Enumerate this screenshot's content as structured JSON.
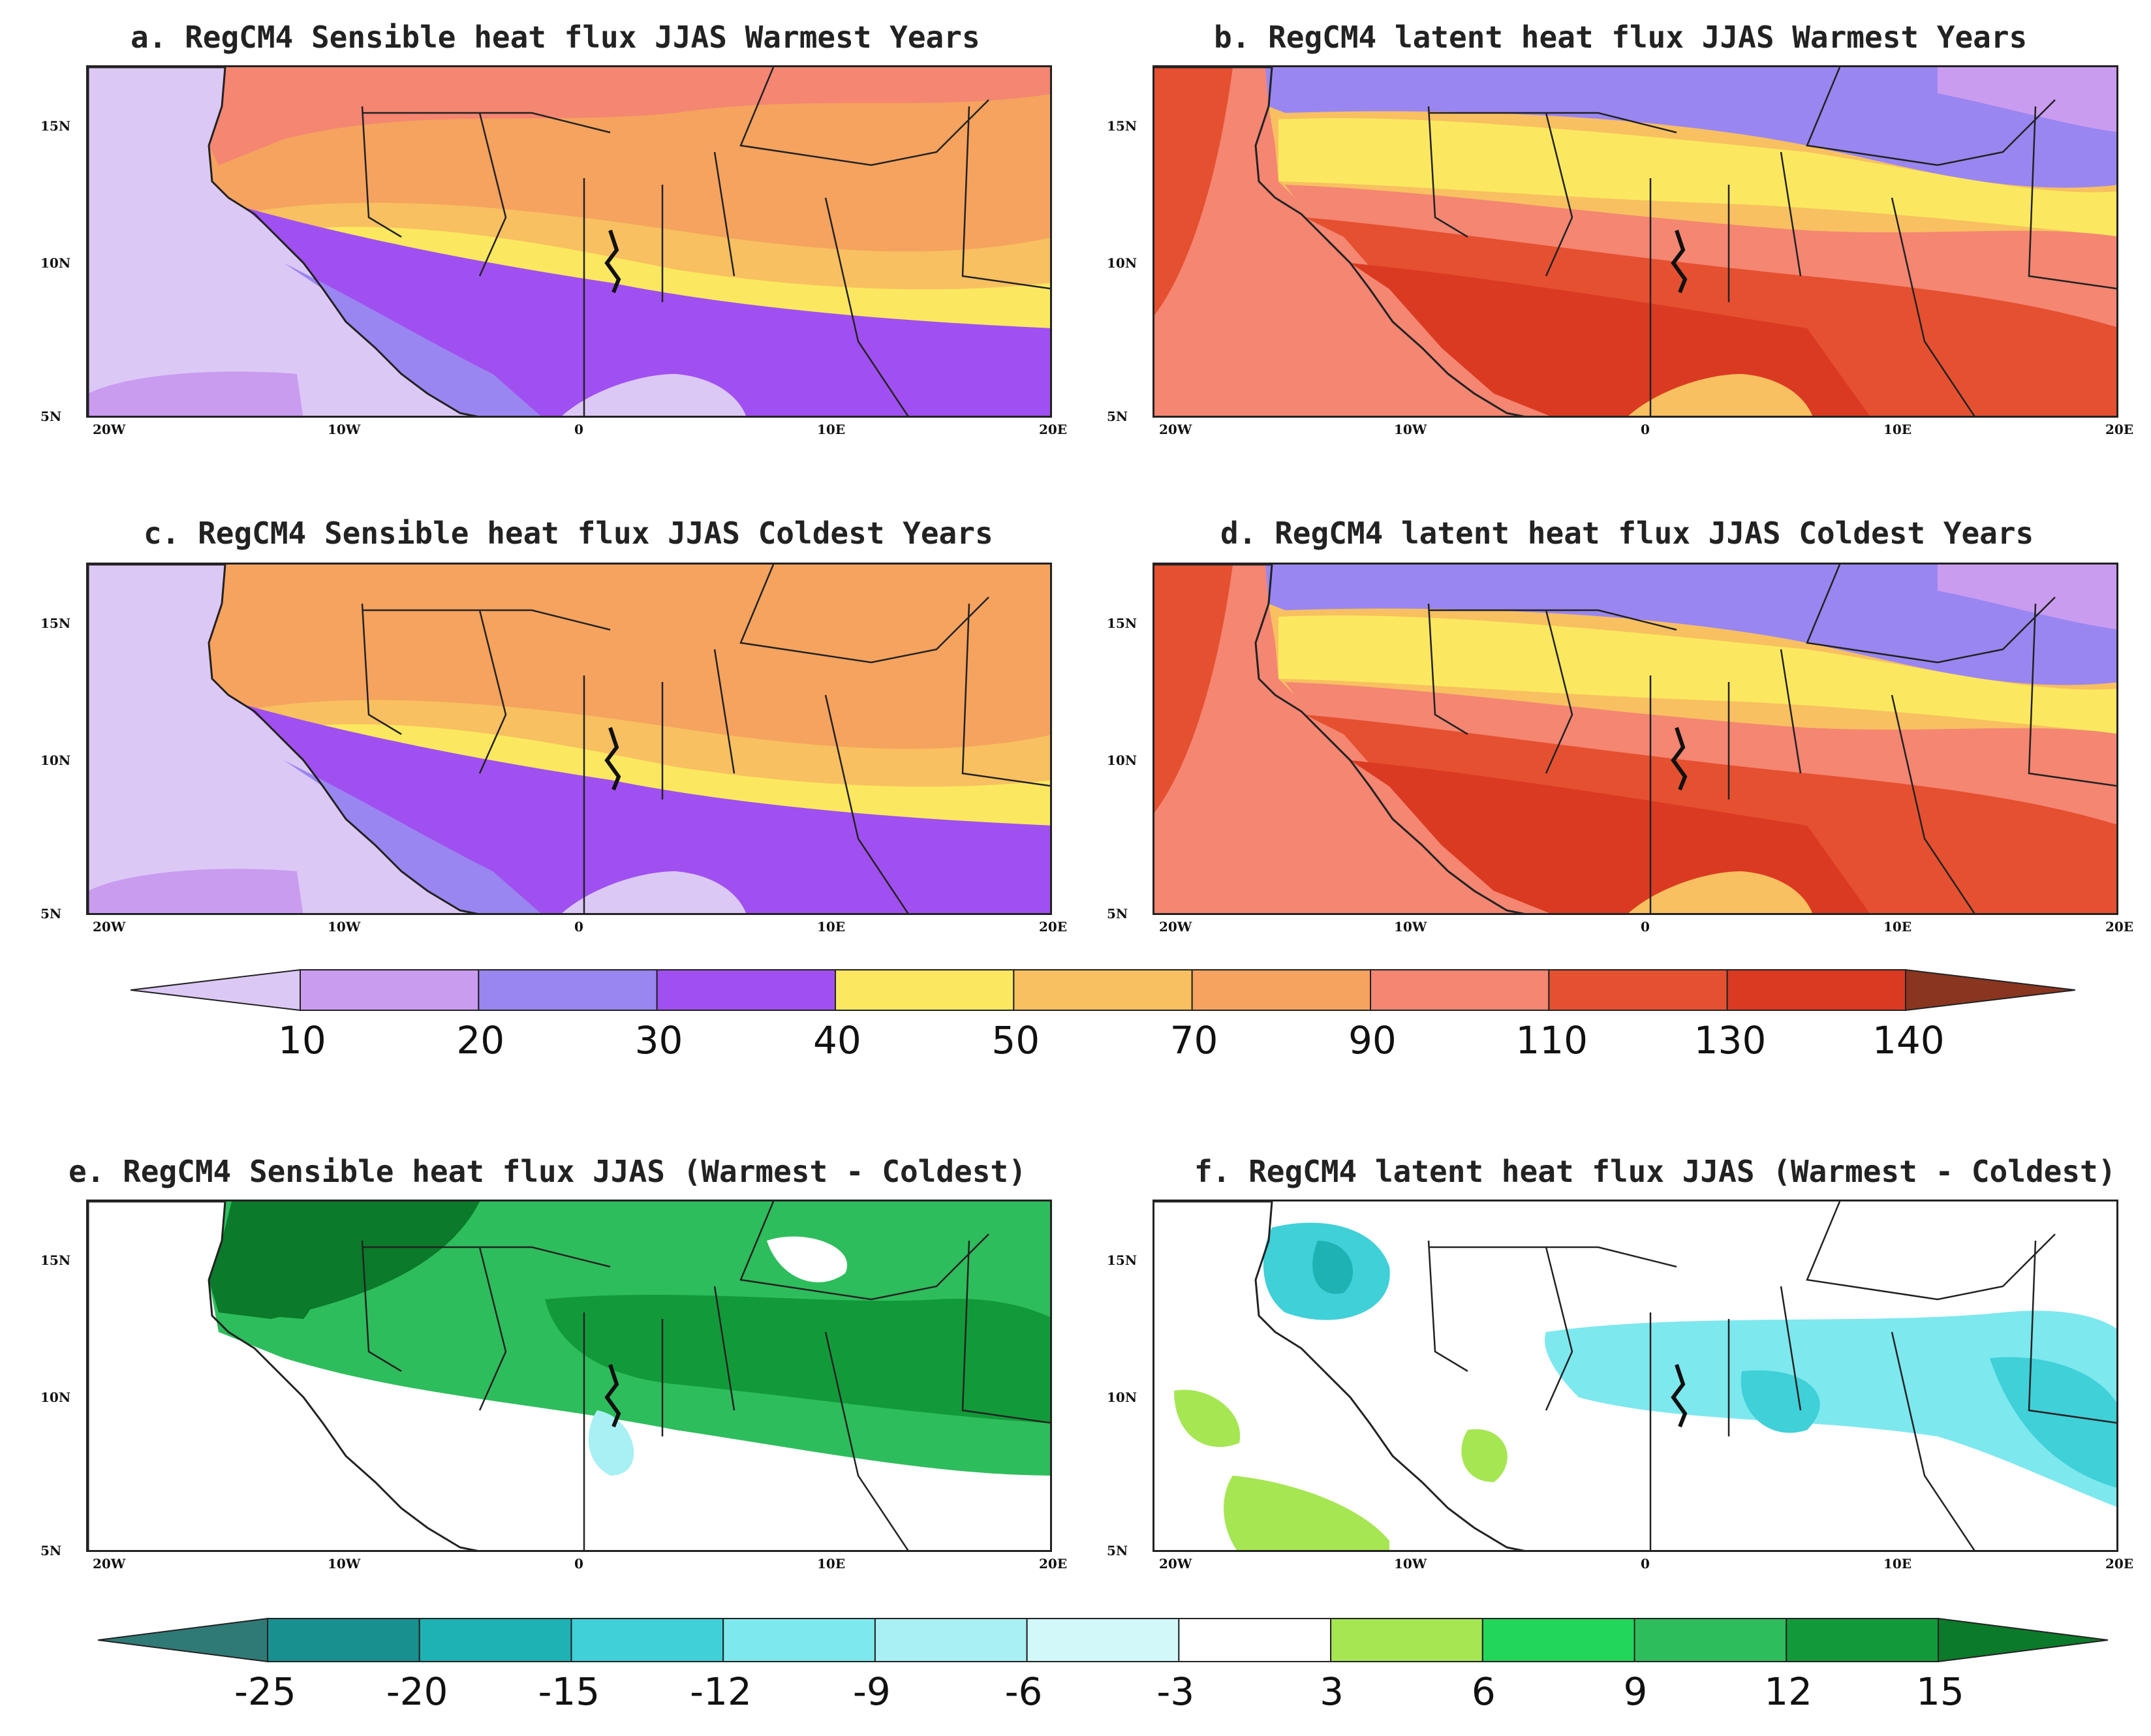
{
  "panels": [
    {
      "id": "a",
      "title": "a. RegCM4 Sensible heat flux JJAS Warmest Years",
      "variable": "sensible",
      "scheme": "abs"
    },
    {
      "id": "b",
      "title": "b. RegCM4 latent heat flux JJAS Warmest Years",
      "variable": "latent",
      "scheme": "abs"
    },
    {
      "id": "c",
      "title": "c. RegCM4 Sensible heat flux JJAS Coldest Years",
      "variable": "sensible",
      "scheme": "abs"
    },
    {
      "id": "d",
      "title": "d. RegCM4 latent heat flux JJAS Coldest Years",
      "variable": "latent",
      "scheme": "abs"
    },
    {
      "id": "e",
      "title": "e. RegCM4 Sensible heat flux JJAS (Warmest - Coldest)",
      "variable": "sensible",
      "scheme": "diff"
    },
    {
      "id": "f",
      "title": "f. RegCM4 latent heat flux JJAS (Warmest - Coldest)",
      "variable": "latent",
      "scheme": "diff"
    }
  ],
  "axes": {
    "lon_ticks": [
      "20W",
      "10W",
      "0",
      "10E",
      "20E"
    ],
    "lat_ticks": [
      "15N",
      "10N",
      "5N"
    ]
  },
  "colorbar_abs": {
    "levels": [
      "10",
      "20",
      "30",
      "40",
      "50",
      "70",
      "90",
      "110",
      "130",
      "140"
    ],
    "colors": [
      "#dcc8f5",
      "#c99cf0",
      "#9a86f0",
      "#a050f0",
      "#fbe860",
      "#f8c060",
      "#f5a35f",
      "#f48672",
      "#e55030",
      "#db3a22",
      "#8a3520"
    ]
  },
  "colorbar_diff": {
    "levels": [
      "-25",
      "-20",
      "-15",
      "-12",
      "-9",
      "-6",
      "-3",
      "3",
      "6",
      "9",
      "12",
      "15"
    ],
    "colors": [
      "#2f7a76",
      "#17908f",
      "#1fb2b5",
      "#3fd0d8",
      "#7de8ee",
      "#a8f0f4",
      "#d2f8fa",
      "#ffffff",
      "#a6e653",
      "#22d65a",
      "#2ebd5c",
      "#129a3a",
      "#0b7a2a"
    ]
  }
}
